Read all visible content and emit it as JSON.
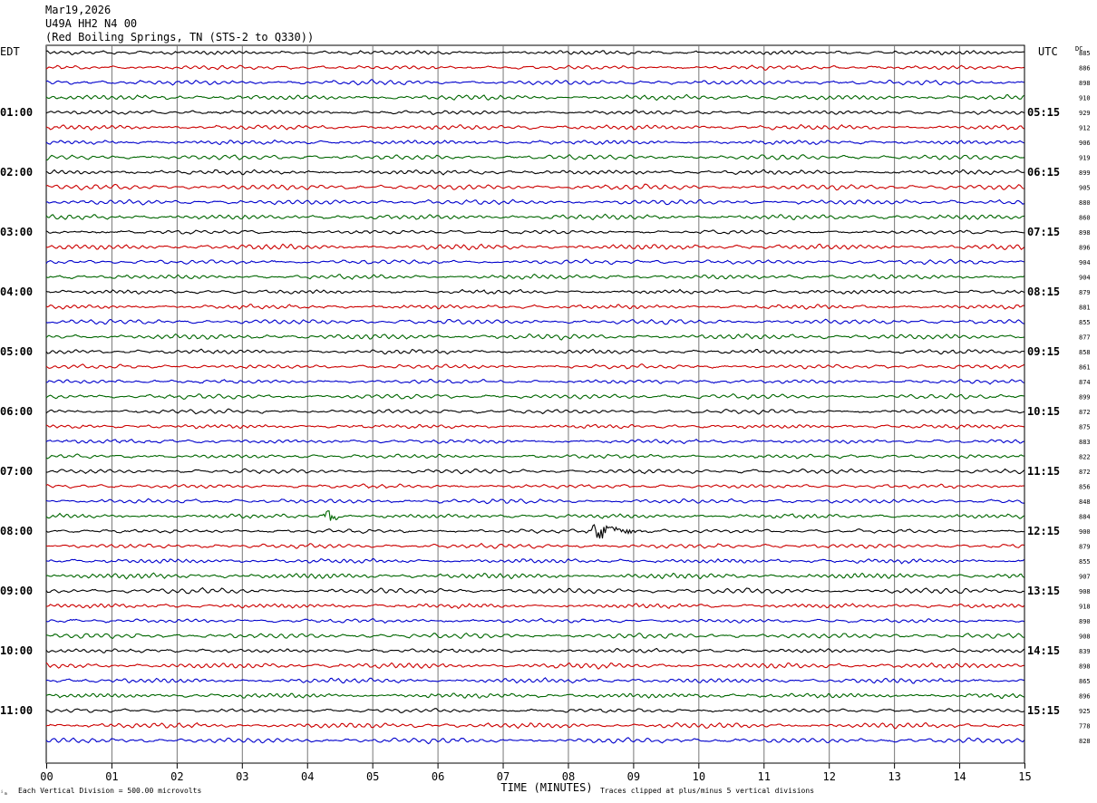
{
  "header": {
    "date": "Mar19,2026",
    "station": "U49A HH2 N4 00",
    "location": "(Red Boiling Springs, TN (STS-2 to Q330))"
  },
  "footer": {
    "left_mark": "ⁱₘ",
    "scale_note": "Each Vertical Division =  500.00 microvolts",
    "clip_note": "Traces clipped at plus/minus 5 vertical divisions"
  },
  "chart_data": {
    "type": "line",
    "title": "",
    "xlabel": "TIME (MINUTES)",
    "ylabel": "",
    "left_axis_label": "EDT",
    "right_axis_label": "UTC",
    "dc_header": "DC",
    "xlim": [
      0,
      15
    ],
    "x_ticks": [
      "00",
      "01",
      "02",
      "03",
      "04",
      "05",
      "06",
      "07",
      "08",
      "09",
      "10",
      "11",
      "12",
      "13",
      "14",
      "15"
    ],
    "left_hour_labels": [
      "01:00",
      "02:00",
      "03:00",
      "04:00",
      "05:00",
      "06:00",
      "07:00",
      "08:00",
      "09:00",
      "10:00",
      "11:00"
    ],
    "right_hour_labels": [
      "05:15",
      "06:15",
      "07:15",
      "08:15",
      "09:15",
      "10:15",
      "11:15",
      "12:15",
      "13:15",
      "14:15",
      "15:15"
    ],
    "hour_label_trace_indices": [
      4,
      8,
      12,
      16,
      20,
      24,
      28,
      32,
      36,
      40,
      44
    ],
    "trace_colors": [
      "#000000",
      "#cc0000",
      "#0000cc",
      "#006600"
    ],
    "dc_offsets": [
      885,
      886,
      898,
      910,
      929,
      912,
      906,
      919,
      899,
      905,
      880,
      860,
      898,
      896,
      904,
      904,
      879,
      881,
      855,
      877,
      858,
      861,
      874,
      899,
      872,
      875,
      883,
      822,
      872,
      856,
      848,
      884,
      900,
      879,
      855,
      907,
      908,
      918,
      890,
      908,
      839,
      898,
      865,
      896,
      925,
      778,
      828
    ],
    "events": [
      {
        "trace": 31,
        "x_start": 4.2,
        "x_end": 4.5,
        "kind": "burst"
      },
      {
        "trace": 32,
        "x_start": 8.25,
        "x_end": 9.2,
        "kind": "earthquake"
      }
    ],
    "grid": true
  }
}
